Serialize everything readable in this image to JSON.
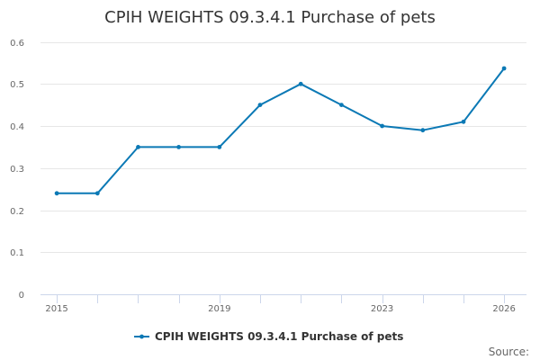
{
  "chart_data": {
    "type": "line",
    "title": "CPIH WEIGHTS 09.3.4.1 Purchase of pets",
    "xlabel": "",
    "ylabel": "",
    "x": [
      2015,
      2016,
      2017,
      2018,
      2019,
      2020,
      2021,
      2022,
      2023,
      2024,
      2025,
      2026
    ],
    "x_tick_labels": [
      "2015",
      "2019",
      "2023",
      "2026"
    ],
    "x_tick_values": [
      2015,
      2019,
      2023,
      2026
    ],
    "y_ticks": [
      "0",
      "0.1",
      "0.2",
      "0.3",
      "0.4",
      "0.5",
      "0.6"
    ],
    "y_tick_values": [
      0,
      0.1,
      0.2,
      0.3,
      0.4,
      0.5,
      0.6
    ],
    "ylim": [
      0,
      0.6
    ],
    "xlim": [
      2014.6,
      2026.55
    ],
    "grid": true,
    "legend_position": "bottom-center",
    "series": [
      {
        "name": "CPIH WEIGHTS 09.3.4.1 Purchase of pets",
        "color": "#0b79b5",
        "values": [
          0.24,
          0.24,
          0.35,
          0.35,
          0.35,
          0.45,
          0.5,
          0.45,
          0.4,
          0.39,
          0.41,
          0.537
        ]
      }
    ],
    "source_label": "Source:"
  }
}
